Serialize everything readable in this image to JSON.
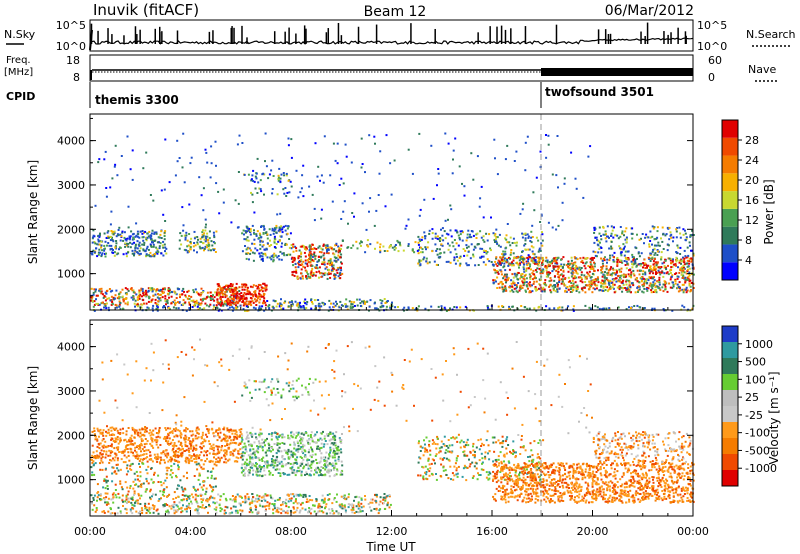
{
  "header": {
    "station": "Inuvik (fitACF)",
    "beam": "Beam 12",
    "date": "06/Mar/2012"
  },
  "summary_panels": {
    "nsky": {
      "label": "N.Sky",
      "ticks": [
        "10^5",
        "10^0"
      ]
    },
    "nsearch": {
      "label": "N.Search",
      "ticks": [
        "10^5",
        "10^0"
      ]
    },
    "freq": {
      "label_line1": "Freq.",
      "label_line2": "[MHz]",
      "ticks": [
        "18",
        "8"
      ]
    },
    "nave": {
      "label": "Nave",
      "ticks": [
        "60",
        "0"
      ]
    },
    "cpid": {
      "label": "CPID",
      "segments": [
        {
          "name": "themis 3300",
          "start_hour": 0,
          "end_hour": 18.0
        },
        {
          "name": "twofsound 3501",
          "start_hour": 18.0,
          "end_hour": 24.0
        }
      ]
    }
  },
  "chart_data": [
    {
      "type": "heatmap",
      "title": "",
      "ylabel": "Slant Range [km]",
      "xlabel": "",
      "xlim_hours": [
        0,
        24
      ],
      "ylim": [
        180,
        4600
      ],
      "yticks": [
        "1000",
        "2000",
        "3000",
        "4000"
      ],
      "colorbar": {
        "label": "Power [dB]",
        "ticks": [
          "28",
          "24",
          "20",
          "16",
          "12",
          "8",
          "4"
        ],
        "colors": [
          "#0000ff",
          "#1e4fc8",
          "#2f7a5a",
          "#4aa052",
          "#c8d830",
          "#f7b000",
          "#f57c00",
          "#f04a00",
          "#e00000"
        ]
      }
    },
    {
      "type": "heatmap",
      "title": "",
      "ylabel": "Slant Range [km]",
      "xlabel": "Time UT",
      "xlim_hours": [
        0,
        24
      ],
      "ylim": [
        180,
        4600
      ],
      "yticks": [
        "1000",
        "2000",
        "3000",
        "4000"
      ],
      "xticks": [
        "00:00",
        "04:00",
        "08:00",
        "12:00",
        "16:00",
        "20:00",
        "00:00"
      ],
      "colorbar": {
        "label": "Velocity [m s⁻¹]",
        "ticks": [
          "1000",
          "500",
          "100",
          "25",
          "-25",
          "-100",
          "-500",
          "-1000"
        ],
        "colors": [
          "#e00000",
          "#f04a00",
          "#f57c00",
          "#ff9a1a",
          "#c8c8c8",
          "#bebebe",
          "#66cc33",
          "#2f7a5a",
          "#2f9aa0",
          "#1e3cc8"
        ]
      }
    }
  ]
}
